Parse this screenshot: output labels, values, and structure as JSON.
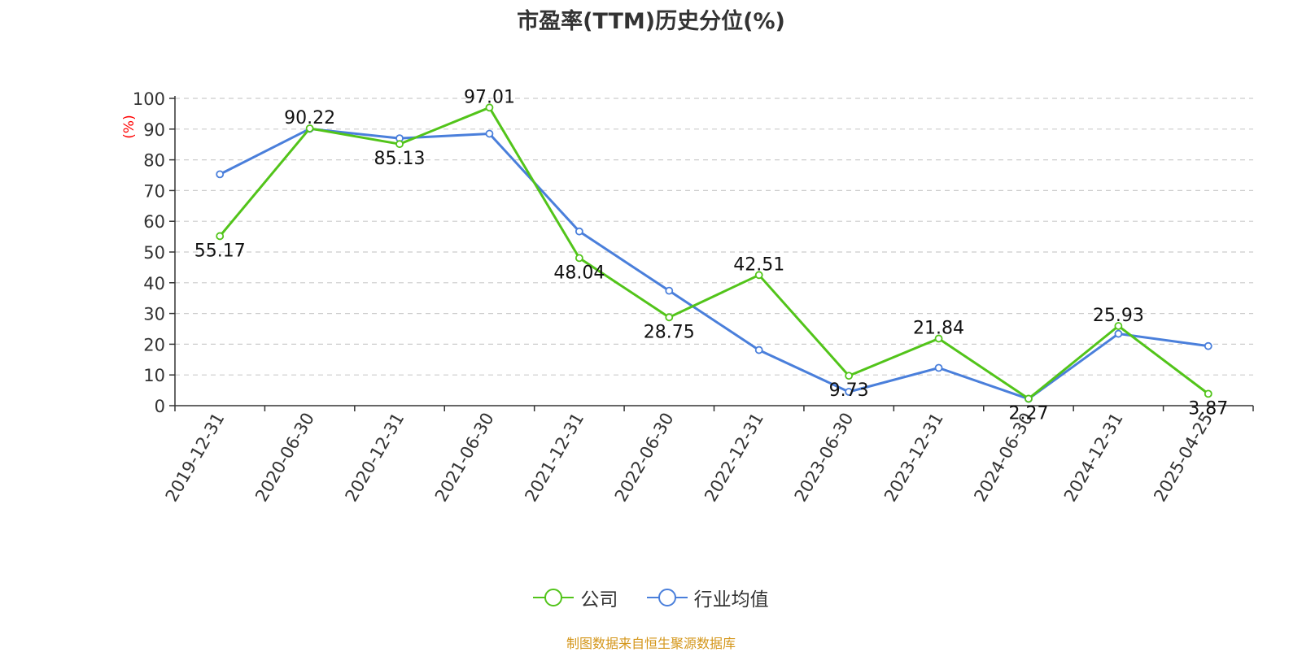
{
  "title": "市盈率(TTM)历史分位(%)",
  "source_note": "制图数据来自恒生聚源数据库",
  "legend": {
    "company_label": "公司",
    "industry_label": "行业均值"
  },
  "colors": {
    "company": "#52c41a",
    "industry": "#4a7fdb",
    "axis_unit": "#ff0000",
    "grid": "#cccccc",
    "axis": "#333333",
    "source": "#d4961a"
  },
  "chart_data": {
    "type": "line",
    "title": "市盈率(TTM)历史分位(%)",
    "xlabel": "",
    "ylabel": "(%)",
    "ylim": [
      0,
      100
    ],
    "yticks": [
      0,
      10,
      20,
      30,
      40,
      50,
      60,
      70,
      80,
      90,
      100
    ],
    "grid": true,
    "legend_position": "bottom",
    "categories": [
      "2019-12-31",
      "2020-06-30",
      "2020-12-31",
      "2021-06-30",
      "2021-12-31",
      "2022-06-30",
      "2022-12-31",
      "2023-06-30",
      "2023-12-31",
      "2024-06-30",
      "2024-12-31",
      "2025-04-25"
    ],
    "series": [
      {
        "name": "公司",
        "values": [
          55.17,
          90.22,
          85.13,
          97.01,
          48.04,
          28.75,
          42.51,
          9.73,
          21.84,
          2.27,
          25.93,
          3.87
        ],
        "labels": [
          "55.17",
          "90.22",
          "85.13",
          "97.01",
          "48.04",
          "28.75",
          "42.51",
          "9.73",
          "21.84",
          "2.27",
          "25.93",
          "3.87"
        ]
      },
      {
        "name": "行业均值",
        "values": [
          75.3,
          90.1,
          87.0,
          88.5,
          56.7,
          37.4,
          18.1,
          4.5,
          12.3,
          2.2,
          23.4,
          19.4
        ]
      }
    ]
  }
}
